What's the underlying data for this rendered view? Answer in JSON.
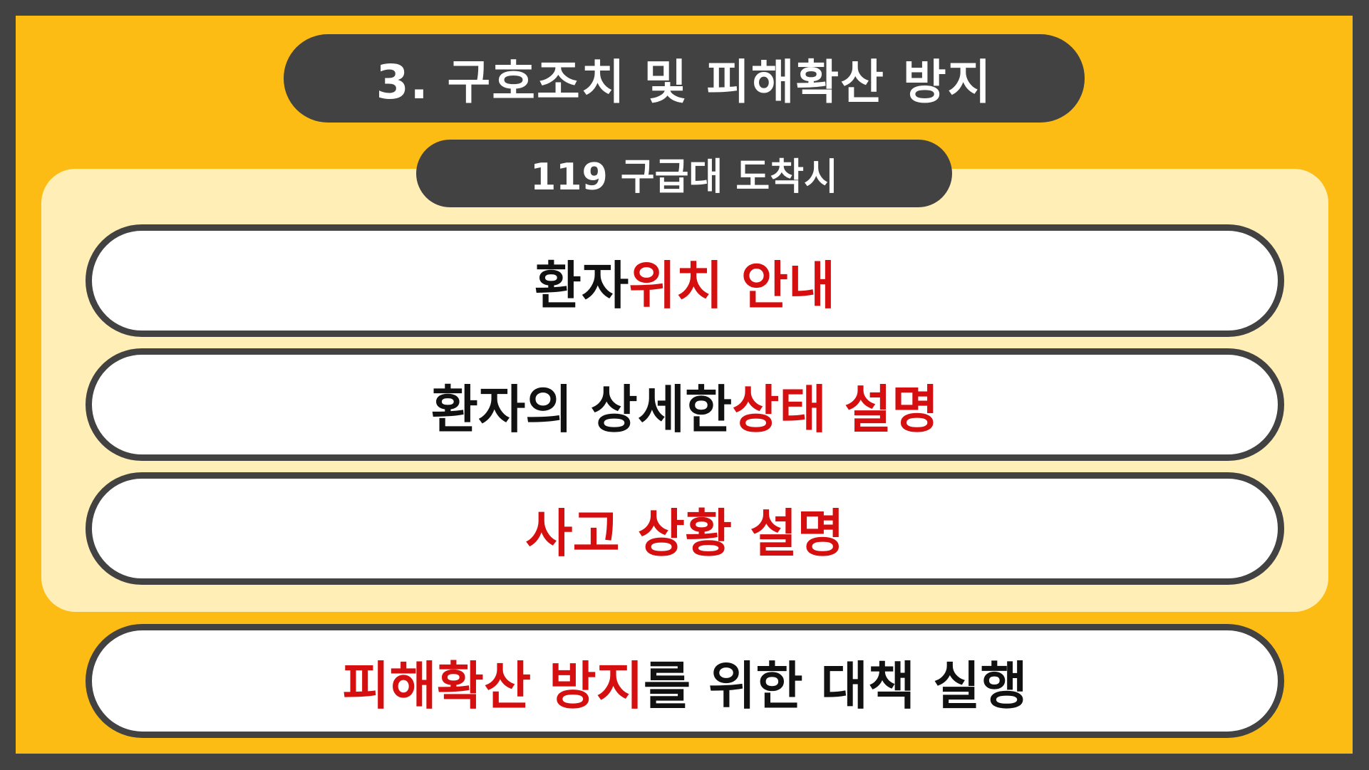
{
  "colors": {
    "frame_border": "#424242",
    "background": "#FCBC14",
    "panel": "#FFEEB5",
    "pill": "#424242",
    "item_background": "#FFFFFF",
    "text_dark": "#111111",
    "text_highlight": "#D50F0F"
  },
  "header": {
    "title": "3. 구호조치 및 피해확산 방지"
  },
  "section": {
    "subtitle": "119 구급대 도착시",
    "items": [
      {
        "normal_1": "환자 ",
        "highlight_1": "위치 안내"
      },
      {
        "normal_1": "환자의 상세한 ",
        "highlight_1": "상태 설명"
      },
      {
        "highlight_1": "사고 상황 설명"
      }
    ]
  },
  "footer": {
    "highlight_1": "피해확산 방지",
    "normal_1": "를 위한 대책 실행"
  }
}
